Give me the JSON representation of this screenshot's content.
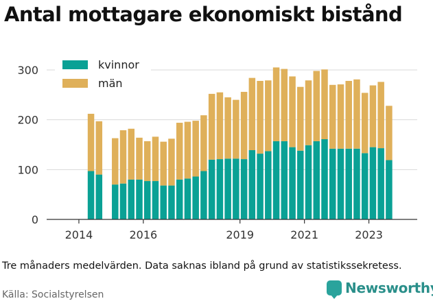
{
  "title": "Antal mottagare ekonomiskt bistånd",
  "note": "Tre månaders medelvärden. Data saknas ibland på grund av statistikssekretess.",
  "source": "Källa: Socialstyrelsen",
  "brand": "Newsworthy",
  "colors": {
    "kvinnor": "#0aa195",
    "man": "#dfb05a",
    "grid": "#d9d9d9",
    "axis": "#333333"
  },
  "chart_data": {
    "type": "bar",
    "stacked": true,
    "title": "Antal mottagare ekonomiskt bistånd",
    "xlabel": "",
    "ylabel": "",
    "ylim": [
      0,
      300
    ],
    "yticks": [
      0,
      100,
      200,
      300
    ],
    "xticks": [
      "2014",
      "2016",
      "2019",
      "2021",
      "2023"
    ],
    "legend": "top-left",
    "grid": true,
    "x": [
      "2014-Q2",
      "2014-Q3",
      "2014-Q4",
      "2015-Q1",
      "2015-Q2",
      "2015-Q3",
      "2015-Q4",
      "2016-Q1",
      "2016-Q2",
      "2016-Q3",
      "2016-Q4",
      "2017-Q1",
      "2017-Q2",
      "2017-Q3",
      "2017-Q4",
      "2018-Q1",
      "2018-Q2",
      "2018-Q3",
      "2018-Q4",
      "2019-Q1",
      "2019-Q2",
      "2019-Q3",
      "2019-Q4",
      "2020-Q1",
      "2020-Q2",
      "2020-Q3",
      "2020-Q4",
      "2021-Q1",
      "2021-Q2",
      "2021-Q3",
      "2021-Q4",
      "2022-Q1",
      "2022-Q2",
      "2022-Q3",
      "2022-Q4",
      "2023-Q1",
      "2023-Q2",
      "2023-Q3"
    ],
    "series": [
      {
        "name": "kvinnor",
        "values": [
          97,
          90,
          null,
          70,
          72,
          80,
          80,
          77,
          77,
          68,
          68,
          80,
          82,
          86,
          97,
          120,
          121,
          122,
          122,
          121,
          139,
          132,
          137,
          157,
          157,
          145,
          138,
          149,
          157,
          161,
          142,
          142,
          142,
          142,
          133,
          145,
          143,
          119
        ]
      },
      {
        "name": "män",
        "values": [
          115,
          107,
          null,
          93,
          107,
          102,
          84,
          80,
          89,
          88,
          94,
          114,
          114,
          112,
          112,
          132,
          134,
          123,
          118,
          135,
          145,
          146,
          142,
          148,
          145,
          142,
          128,
          130,
          141,
          140,
          128,
          129,
          136,
          139,
          121,
          124,
          133,
          109
        ]
      }
    ]
  }
}
